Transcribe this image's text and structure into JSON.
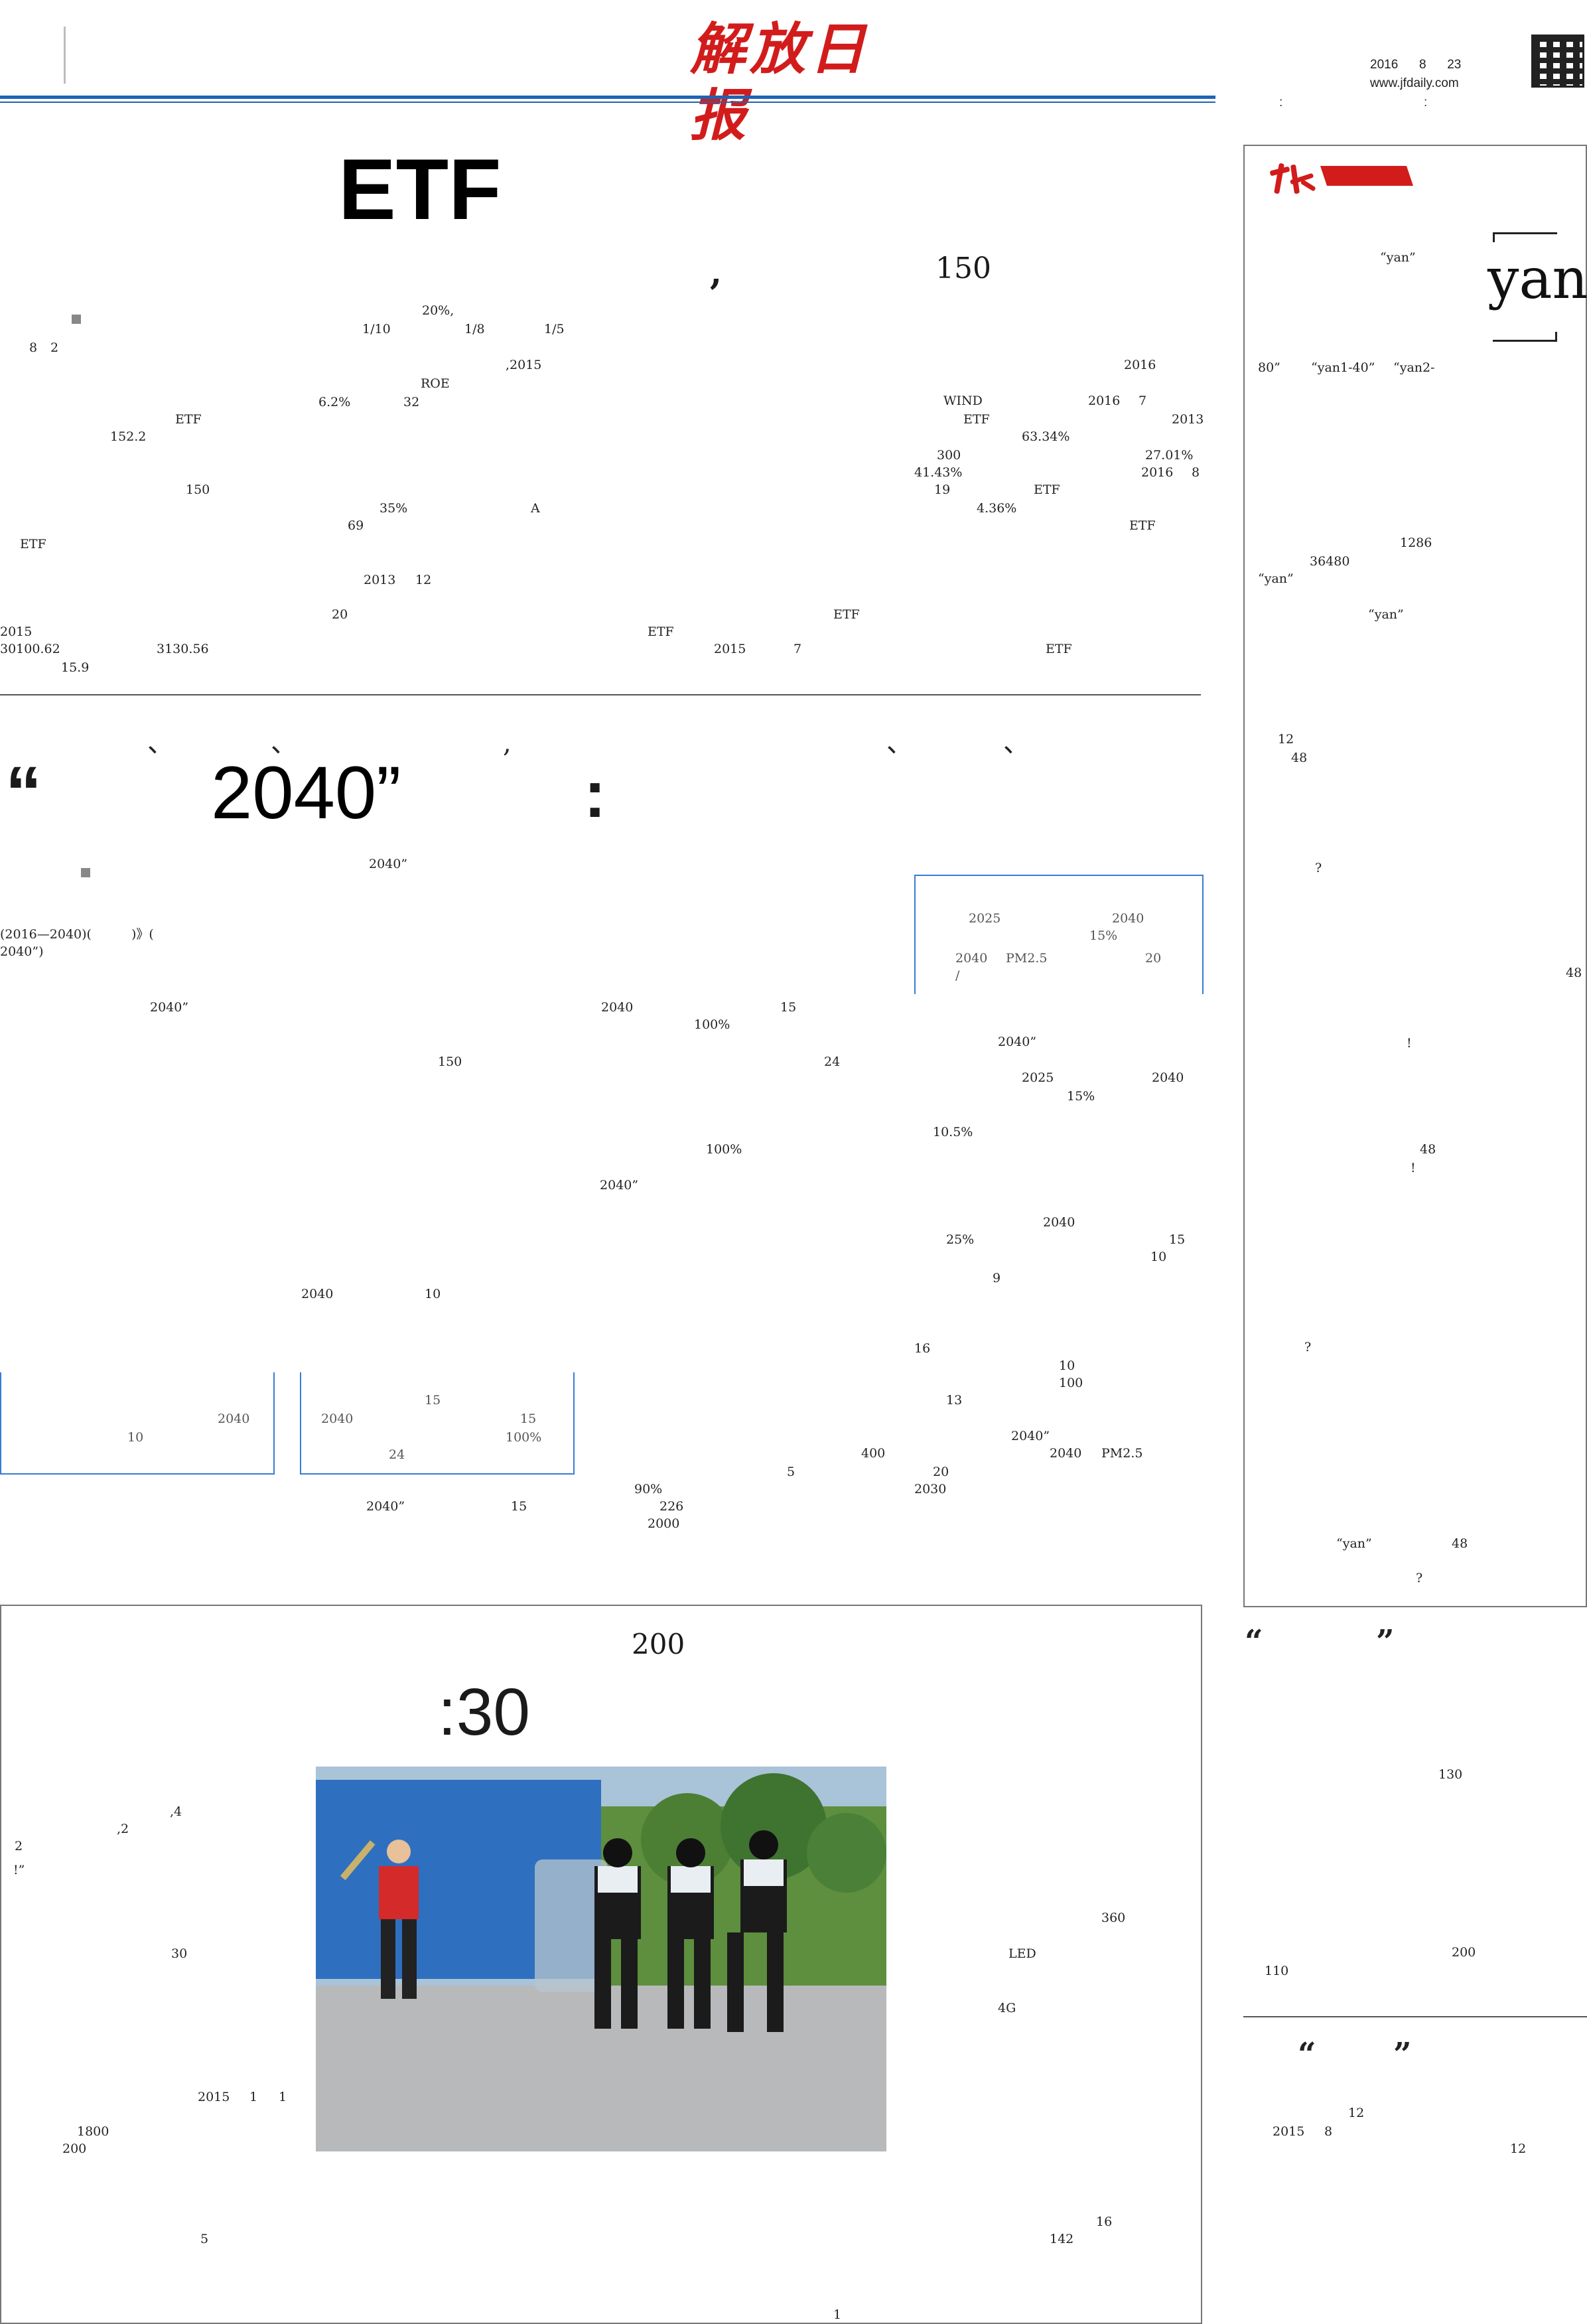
{
  "masthead": {
    "logo": "解放日报",
    "date_parts": [
      "2016",
      "8",
      "23"
    ],
    "website": "www.jfdaily.com",
    "colon_a": ":",
    "colon_b": ":"
  },
  "headlines": {
    "etf_title": "ETF",
    "etf_sub_150": "150",
    "etf_sub_comma": ",",
    "plan_punct": [
      "、",
      "、",
      ",",
      "、",
      "、"
    ],
    "plan_open_quote": "“",
    "plan_title": "2040”",
    "plan_colon": ":",
    "emergency_200": "200",
    "emergency_30": ":30"
  },
  "etf_body": [
    "20%,",
    "1/10",
    "1/8",
    "1/5",
    "8",
    "2",
    "ROE",
    "6.2%",
    "32",
    ",2015",
    "2016",
    "WIND",
    "2016",
    "7",
    "ETF",
    "ETF",
    "2013",
    "152.2",
    "63.34%",
    "300",
    "27.01%",
    "2016",
    "8",
    "41.43%",
    "150",
    "35%",
    "A",
    "19",
    "ETF",
    "4.36%",
    "69",
    "ETF",
    "ETF",
    "2013",
    "12",
    "20",
    "ETF",
    "ETF",
    "2015",
    "30100.62",
    "3130.56",
    "2015",
    "7",
    "ETF",
    "15.9"
  ],
  "plan_body": [
    "2040”",
    "(2016—2040)(",
    ")》(",
    "2040”)",
    "2040”",
    "2040",
    "15",
    "100%",
    "150",
    "24",
    "100%",
    "2040”",
    "2040",
    "10",
    "2040”",
    "15",
    "90%",
    "226",
    "2000",
    "2040”",
    "2040",
    "PM2.5",
    "2030",
    "20",
    "5",
    "400",
    "13",
    "16",
    "10",
    "100",
    "9",
    "25%",
    "2040",
    "15",
    "10",
    "10.5%",
    "2025",
    "2040",
    "15%",
    "2040”"
  ],
  "plan_boxes": {
    "right_box": [
      "2025",
      "2040",
      "15%",
      "2040",
      "PM2.5",
      "20",
      "/"
    ],
    "left_box": [
      "2040",
      "10"
    ],
    "mid_box": [
      "15",
      "2040",
      "15",
      "100%",
      "24"
    ]
  },
  "emergency_body": [
    "!”",
    ",4",
    ",2",
    "2",
    "30",
    "2015",
    "1",
    "1",
    "1800",
    "200",
    "5",
    "1",
    "360",
    "LED",
    "4G",
    "16",
    "142"
  ],
  "sidebar": {
    "label": "yan",
    "body": [
      "“yan”",
      "“yan1-40”",
      "“yan2-",
      "80”",
      "1286",
      "36480",
      "“yan”",
      "“yan”",
      "12",
      "48",
      "48",
      "48",
      "!",
      "!",
      "“yan”",
      "48",
      "?",
      "?",
      "?"
    ]
  },
  "bottom_right": {
    "quote_a": "“",
    "quote_b": "”",
    "body1": [
      "130",
      "200",
      "110"
    ],
    "quote_c": "“",
    "quote_d": "”",
    "body2": [
      "12",
      "2015",
      "8",
      "12"
    ]
  }
}
